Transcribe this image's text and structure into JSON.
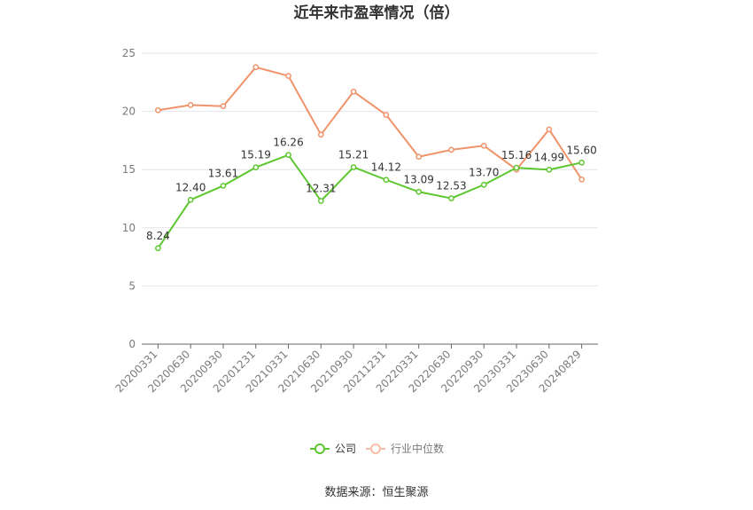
{
  "chart_data": {
    "type": "line",
    "title": "近年来市盈率情况（倍）",
    "categories": [
      "20200331",
      "20200630",
      "20200930",
      "20201231",
      "20210331",
      "20210630",
      "20210930",
      "20211231",
      "20220331",
      "20220630",
      "20220930",
      "20230331",
      "20230630",
      "20240829"
    ],
    "series": [
      {
        "name": "公司",
        "color": "#5cc72e",
        "values": [
          8.24,
          12.4,
          13.61,
          15.19,
          16.26,
          12.31,
          15.21,
          14.12,
          13.09,
          12.53,
          13.7,
          15.16,
          14.99,
          15.6
        ],
        "labels": [
          "8.24",
          "12.40",
          "13.61",
          "15.19",
          "16.26",
          "12.31",
          "15.21",
          "14.12",
          "13.09",
          "12.53",
          "13.70",
          "15.16",
          "14.99",
          "15.60"
        ]
      },
      {
        "name": "行业中位数",
        "color": "#f0936a",
        "values": [
          20.1,
          20.55,
          20.45,
          23.8,
          23.05,
          18.0,
          21.7,
          19.7,
          16.1,
          16.7,
          17.05,
          15.0,
          18.45,
          14.15
        ]
      }
    ],
    "ylim": [
      0,
      25
    ],
    "yticks": [
      0,
      5,
      10,
      15,
      20,
      25
    ],
    "grid": true,
    "legend_position": "bottom"
  },
  "source_text": "数据来源：恒生聚源"
}
